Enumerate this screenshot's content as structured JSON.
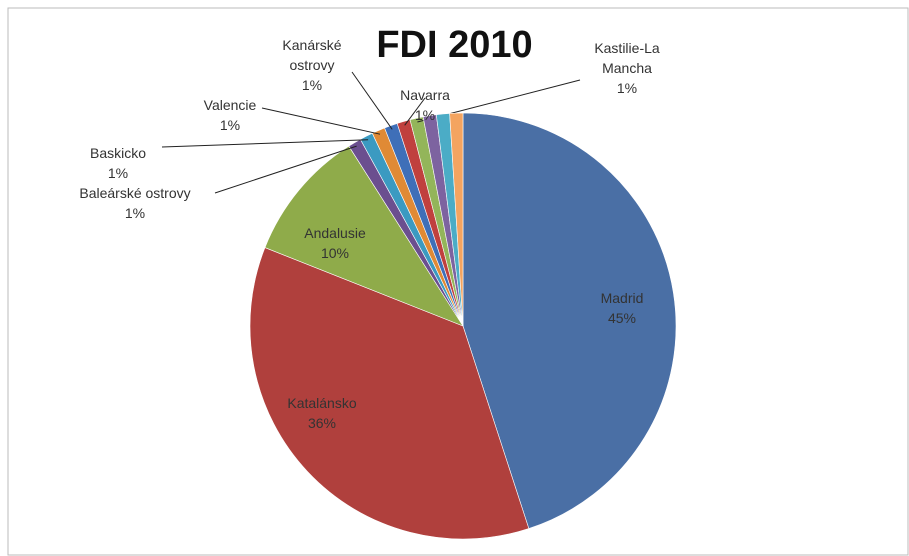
{
  "chart_data": {
    "type": "pie",
    "title": "FDI 2010",
    "categories": [
      "Madrid",
      "Katalánsko",
      "Andalusie",
      "Baleárské ostrovy",
      "Baskicko",
      "Valencie",
      "Kanárské ostrovy",
      "Navarra",
      "Kastilie-La Mancha",
      null,
      null,
      null
    ],
    "values": [
      45,
      36,
      10,
      1,
      1,
      1,
      1,
      1,
      1,
      1,
      1,
      1
    ],
    "value_labels": [
      "45%",
      "36%",
      "10%",
      "1%",
      "1%",
      "1%",
      "1%",
      "1%",
      "1%",
      null,
      null,
      null
    ],
    "colors": [
      "#4a6fa5",
      "#b0403d",
      "#8fab4a",
      "#6b4f8f",
      "#3b9ac1",
      "#e08a35",
      "#3f6fb8",
      "#c0403e",
      "#93b55a",
      "#7d63a0",
      "#4bacc6",
      "#f4a460"
    ]
  }
}
